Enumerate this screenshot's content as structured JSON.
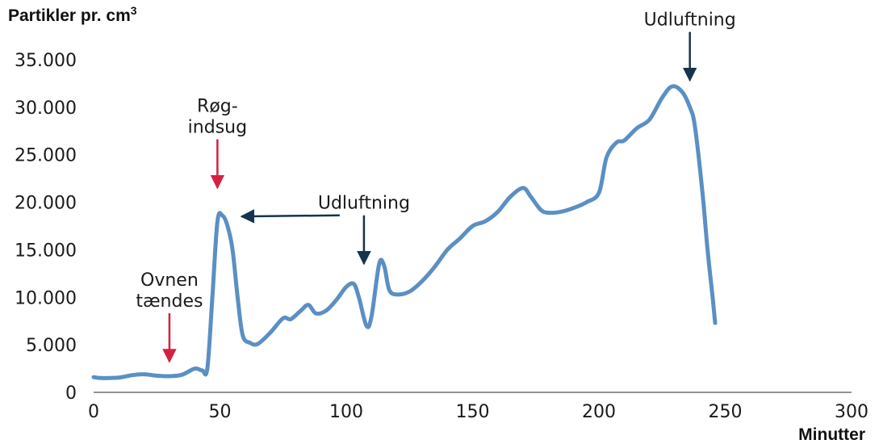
{
  "chart_data": {
    "type": "line",
    "ylabel": "Partikler pr. cm",
    "ylabel_sup": "3",
    "xlabel": "Minutter",
    "xlim": [
      0,
      300
    ],
    "ylim": [
      0,
      35000
    ],
    "x_ticks": [
      0,
      50,
      100,
      150,
      200,
      250,
      300
    ],
    "y_ticks": [
      0,
      5000,
      10000,
      15000,
      20000,
      25000,
      30000,
      35000
    ],
    "x_tick_labels": [
      "0",
      "50",
      "100",
      "150",
      "200",
      "250",
      "300"
    ],
    "y_tick_labels": [
      "0",
      "5.000",
      "10.000",
      "15.000",
      "20.000",
      "25.000",
      "30.000",
      "35.000"
    ],
    "grid": false,
    "series": [
      {
        "color": "#5b8fc4",
        "points": [
          [
            0,
            1600
          ],
          [
            3,
            1500
          ],
          [
            10,
            1550
          ],
          [
            15,
            1800
          ],
          [
            20,
            1900
          ],
          [
            25,
            1750
          ],
          [
            30,
            1700
          ],
          [
            35,
            1850
          ],
          [
            40,
            2500
          ],
          [
            43,
            2300
          ],
          [
            45,
            2500
          ],
          [
            47,
            10000
          ],
          [
            49,
            18000
          ],
          [
            51,
            18600
          ],
          [
            53,
            17500
          ],
          [
            55,
            15000
          ],
          [
            57,
            10000
          ],
          [
            59,
            6000
          ],
          [
            62,
            5200
          ],
          [
            65,
            5100
          ],
          [
            70,
            6300
          ],
          [
            75,
            7800
          ],
          [
            78,
            7700
          ],
          [
            82,
            8600
          ],
          [
            85,
            9200
          ],
          [
            88,
            8300
          ],
          [
            92,
            8600
          ],
          [
            96,
            9700
          ],
          [
            100,
            11100
          ],
          [
            103,
            11400
          ],
          [
            105,
            10000
          ],
          [
            108,
            7000
          ],
          [
            110,
            8000
          ],
          [
            113,
            13500
          ],
          [
            115,
            13300
          ],
          [
            117,
            10800
          ],
          [
            120,
            10300
          ],
          [
            125,
            10600
          ],
          [
            130,
            11700
          ],
          [
            135,
            13200
          ],
          [
            140,
            15000
          ],
          [
            145,
            16200
          ],
          [
            150,
            17500
          ],
          [
            155,
            18000
          ],
          [
            160,
            19000
          ],
          [
            165,
            20600
          ],
          [
            170,
            21500
          ],
          [
            173,
            20600
          ],
          [
            177,
            19200
          ],
          [
            180,
            18900
          ],
          [
            185,
            19000
          ],
          [
            190,
            19400
          ],
          [
            195,
            20000
          ],
          [
            200,
            21000
          ],
          [
            203,
            24700
          ],
          [
            207,
            26300
          ],
          [
            210,
            26500
          ],
          [
            215,
            27800
          ],
          [
            220,
            28700
          ],
          [
            225,
            31000
          ],
          [
            229,
            32200
          ],
          [
            233,
            31600
          ],
          [
            236,
            30000
          ],
          [
            238,
            28000
          ],
          [
            241,
            21000
          ],
          [
            243,
            15000
          ],
          [
            245,
            10000
          ],
          [
            246,
            7300
          ]
        ]
      }
    ],
    "annotations": [
      {
        "lines": [
          "Ovnen",
          "tændes"
        ],
        "x": 30,
        "y": 1700,
        "arrow_color": "#d4213d"
      },
      {
        "lines": [
          "Røg-",
          "indsug"
        ],
        "x": 49,
        "y": 20000,
        "arrow_color": "#d4213d"
      },
      {
        "lines": [
          "Udluftning"
        ],
        "x": 107,
        "y": 12000,
        "extra_target": [
          56,
          18000
        ],
        "arrow_color": "#14344f"
      },
      {
        "lines": [
          "Udluftning"
        ],
        "x": 236,
        "y": 31300,
        "arrow_color": "#14344f"
      }
    ]
  }
}
